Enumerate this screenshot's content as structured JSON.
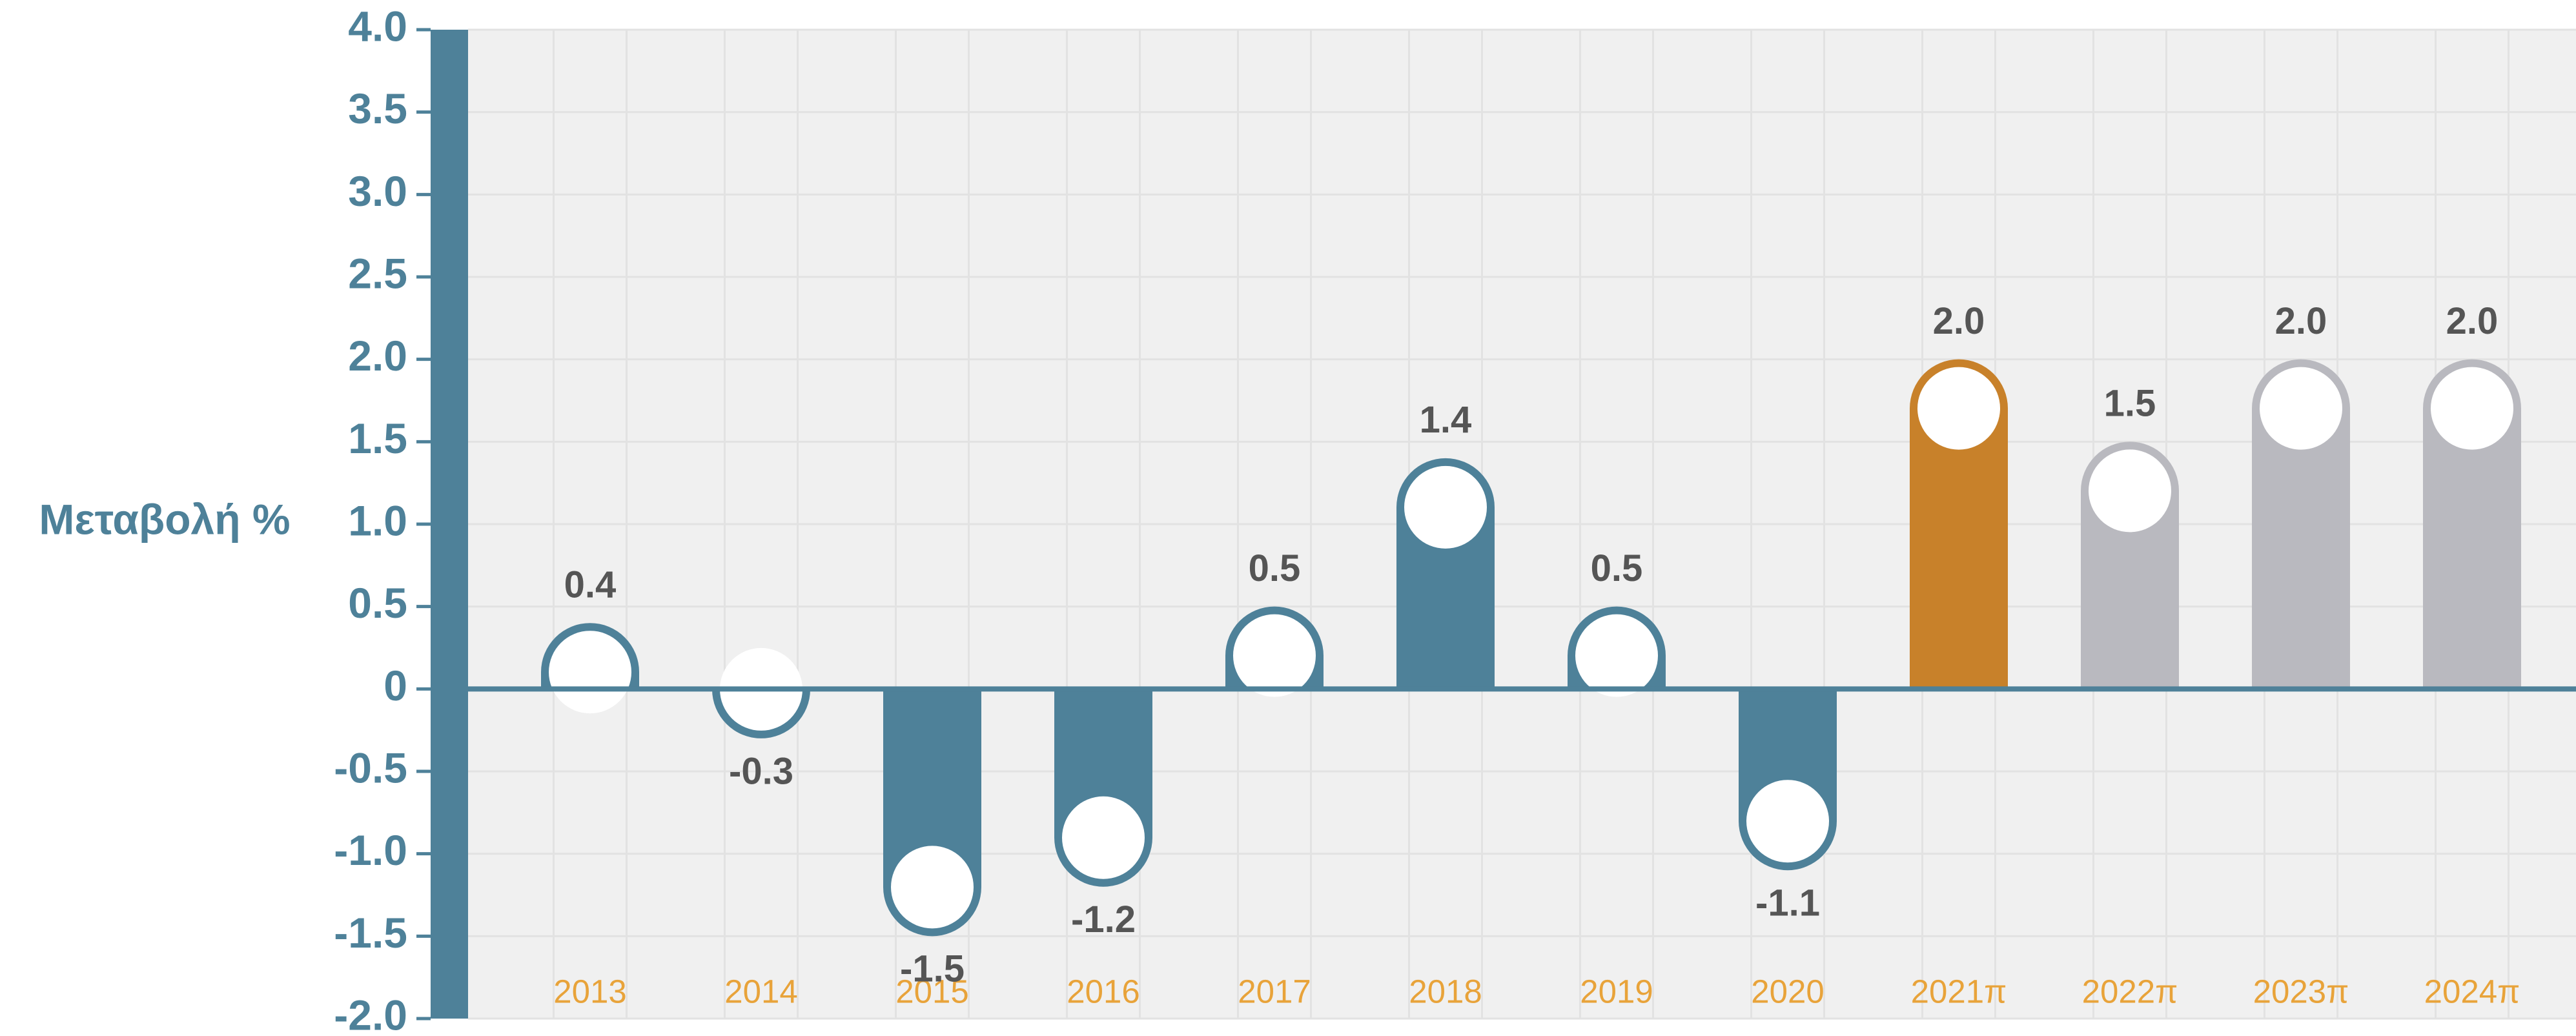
{
  "chart_data": {
    "type": "bar",
    "y_label": "Μεταβολή %",
    "categories": [
      "2013",
      "2014",
      "2015",
      "2016",
      "2017",
      "2018",
      "2019",
      "2020",
      "2021π",
      "2022π",
      "2023π",
      "2024π"
    ],
    "values": [
      0.4,
      -0.3,
      -1.5,
      -1.2,
      0.5,
      1.4,
      0.5,
      -1.1,
      2.0,
      1.5,
      2.0,
      2.0
    ],
    "value_labels": [
      "0.4",
      "-0.3",
      "-1.5",
      "-1.2",
      "0.5",
      "1.4",
      "0.5",
      "-1.1",
      "2.0",
      "1.5",
      "2.0",
      "2.0"
    ],
    "colors": [
      "#4e8199",
      "#4e8199",
      "#4e8199",
      "#4e8199",
      "#4e8199",
      "#4e8199",
      "#4e8199",
      "#4e8199",
      "#c8812a",
      "#b9b9bf",
      "#b9b9bf",
      "#b9b9bf"
    ],
    "ylim": [
      -2,
      4
    ],
    "yticks": [
      {
        "value": -2,
        "label": "-2.0"
      },
      -1.5,
      {
        "value": -1,
        "label": "-1.0"
      },
      -0.5,
      0,
      0.5,
      {
        "value": 1,
        "label": "1.0"
      },
      1.5,
      {
        "value": 2,
        "label": "2.0"
      },
      2.5,
      {
        "value": 3,
        "label": "3.0"
      },
      3.5,
      {
        "value": 4,
        "label": "4.0"
      }
    ],
    "grid": true
  }
}
